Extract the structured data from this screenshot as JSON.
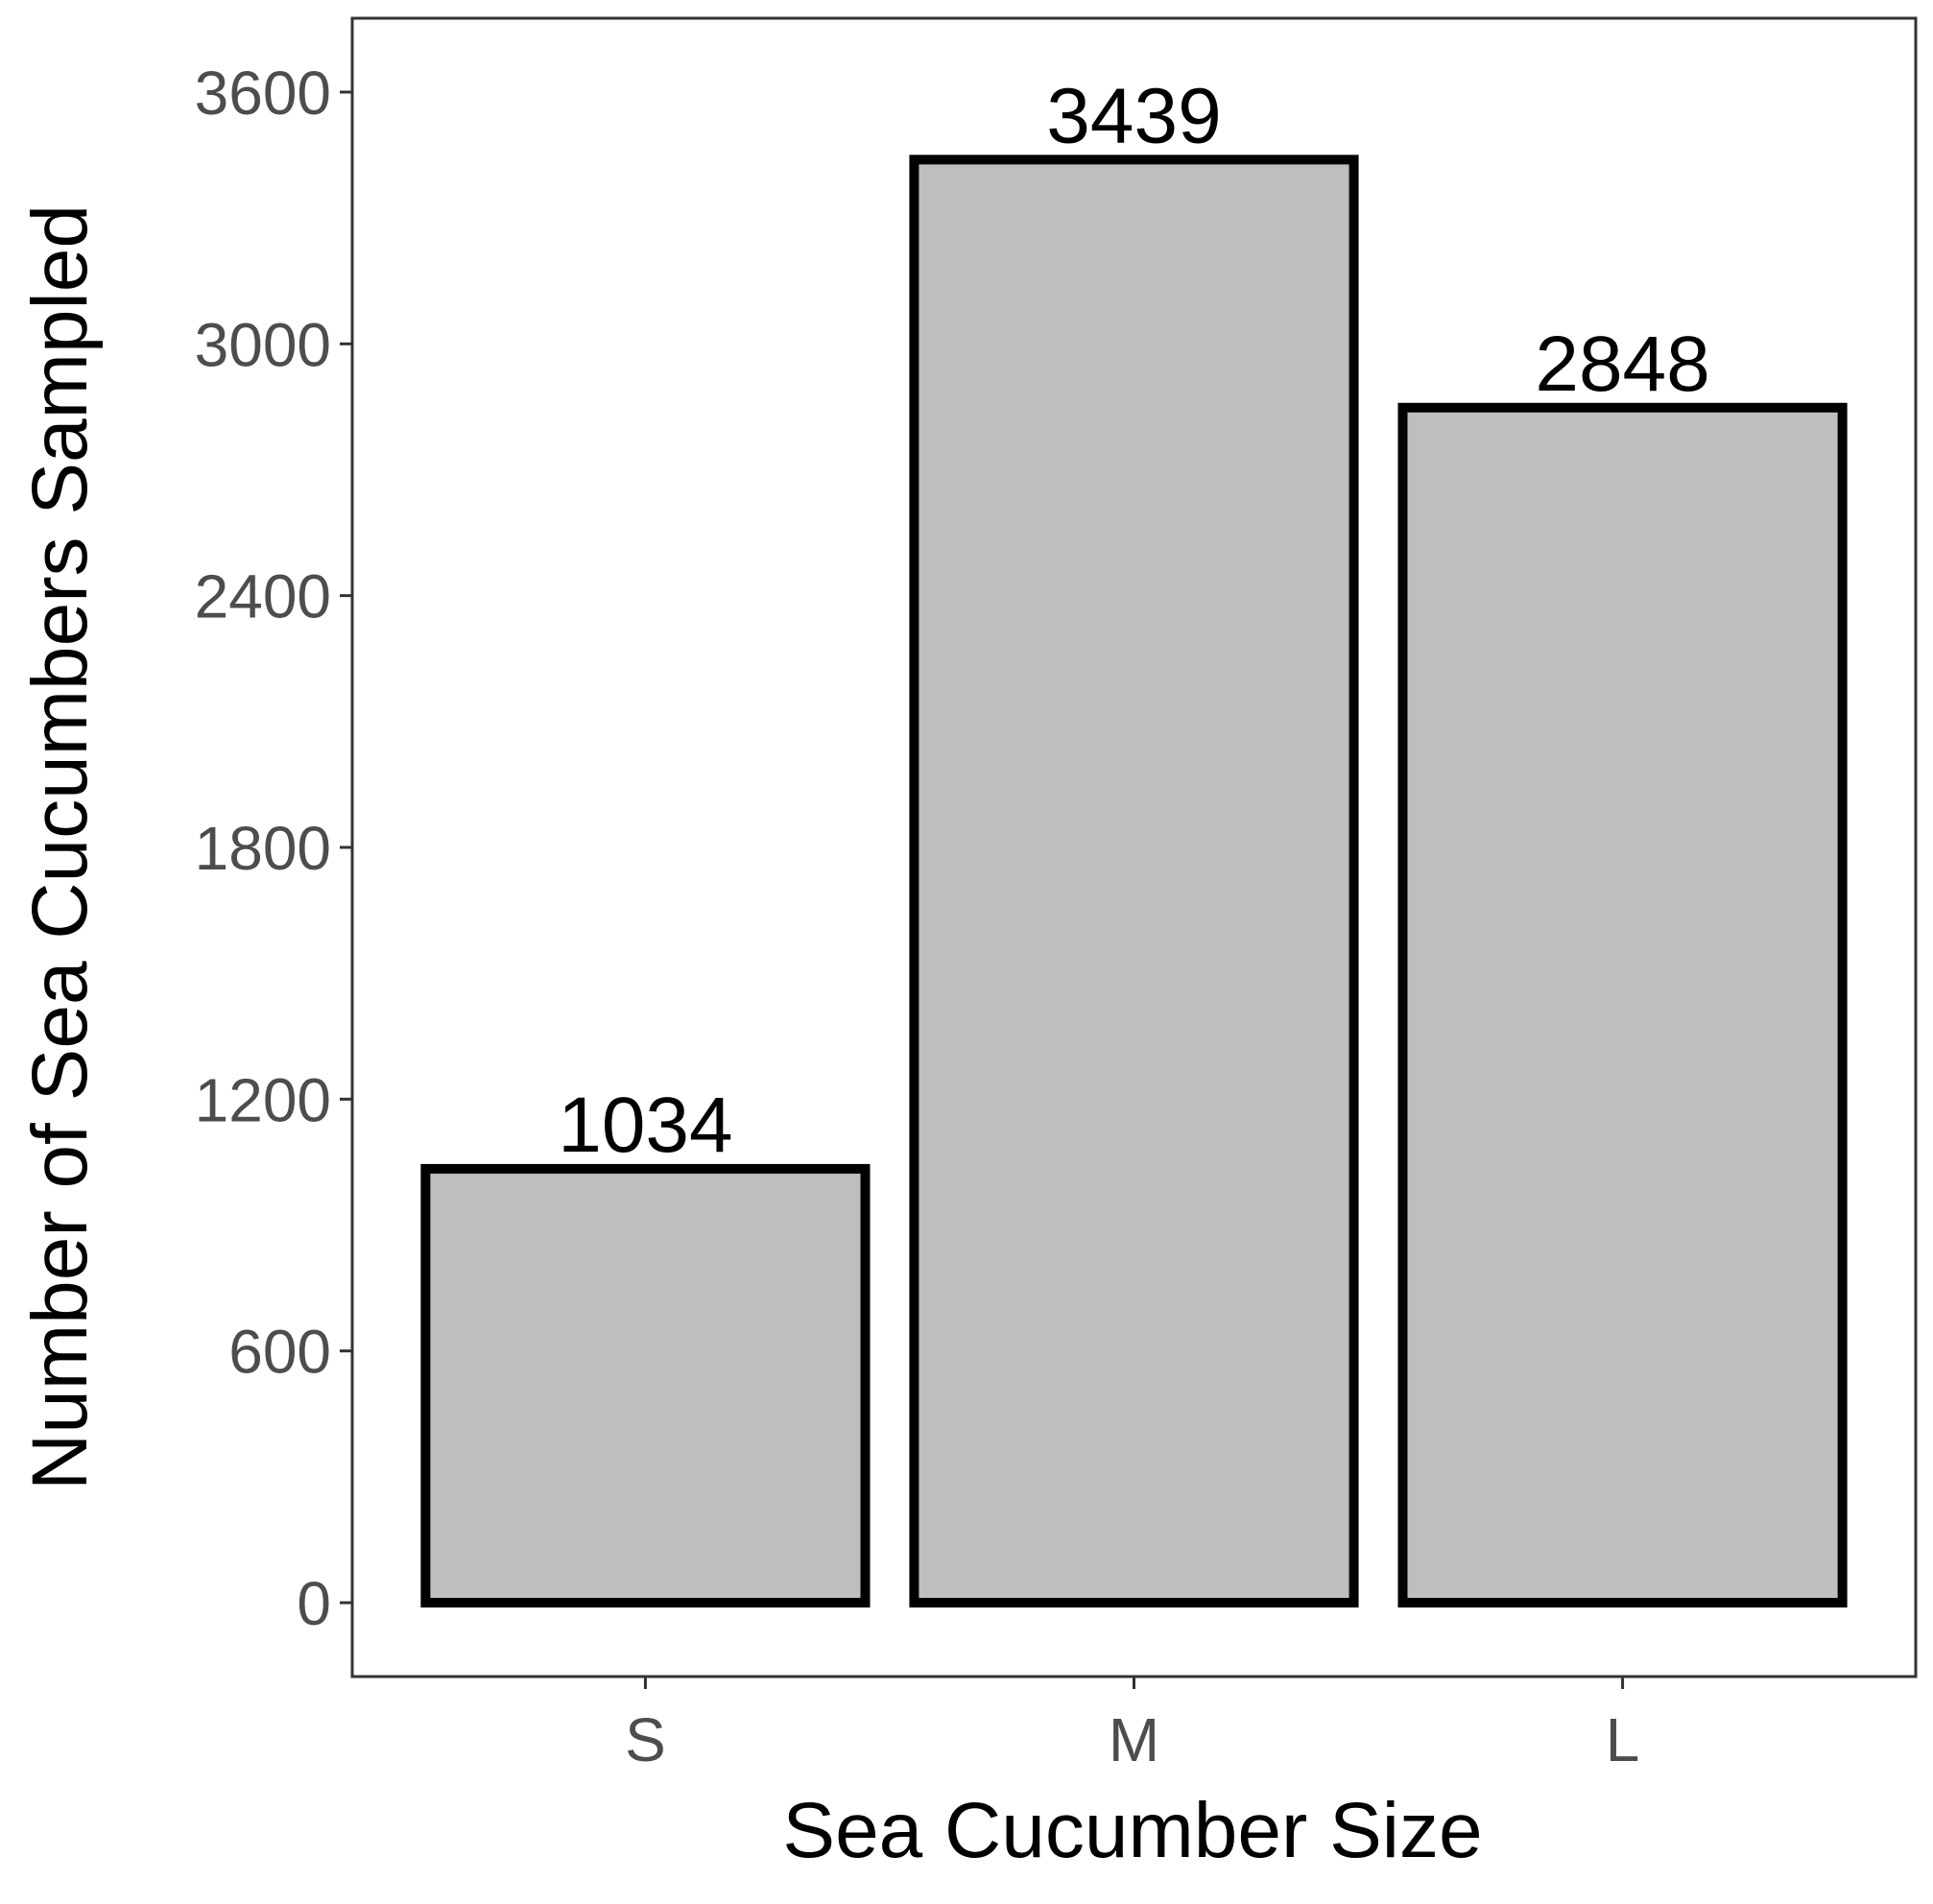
{
  "chart_data": {
    "type": "bar",
    "x_label": "Sea Cucumber Size",
    "y_label": "Number of Sea Cucumbers Sampled",
    "categories": [
      "S",
      "M",
      "L"
    ],
    "values": [
      1034,
      3439,
      2848
    ],
    "color": "#bebebe",
    "edge_color": "#000000",
    "ylim": [
      -176,
      3776
    ],
    "yticks": [
      0,
      600,
      1200,
      1800,
      2400,
      3000,
      3600
    ],
    "grid": false
  }
}
